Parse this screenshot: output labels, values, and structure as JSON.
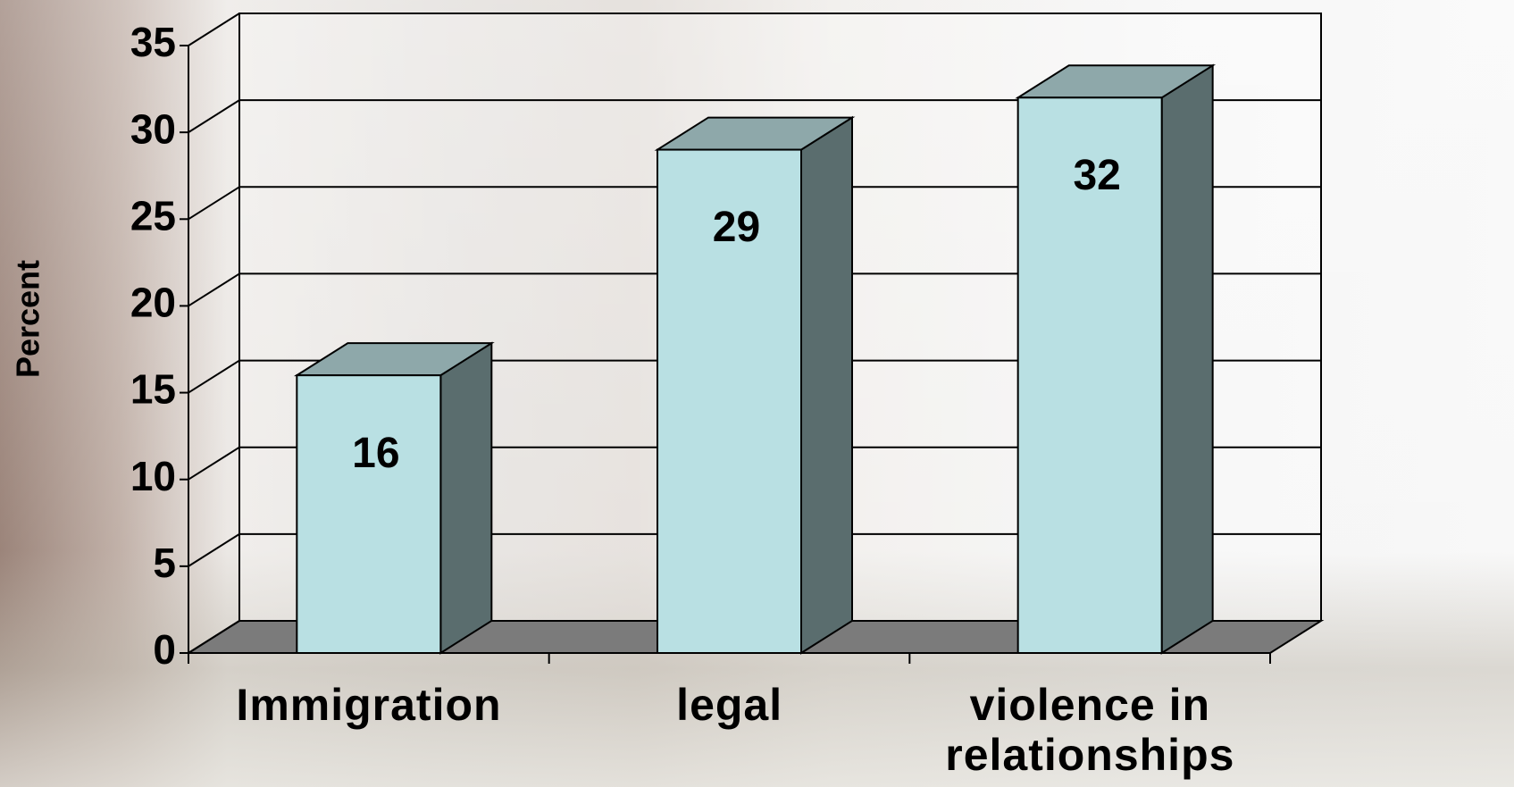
{
  "chart_data": {
    "type": "bar",
    "y_label": "Percent",
    "categories": [
      "Immigration",
      "legal",
      "violence in relationships"
    ],
    "values": [
      16,
      29,
      32
    ],
    "color": "#b9e0e3",
    "ylim": [
      0,
      35
    ],
    "yticks": [
      0,
      5,
      10,
      15,
      20,
      25,
      30,
      35
    ],
    "grid": true
  }
}
